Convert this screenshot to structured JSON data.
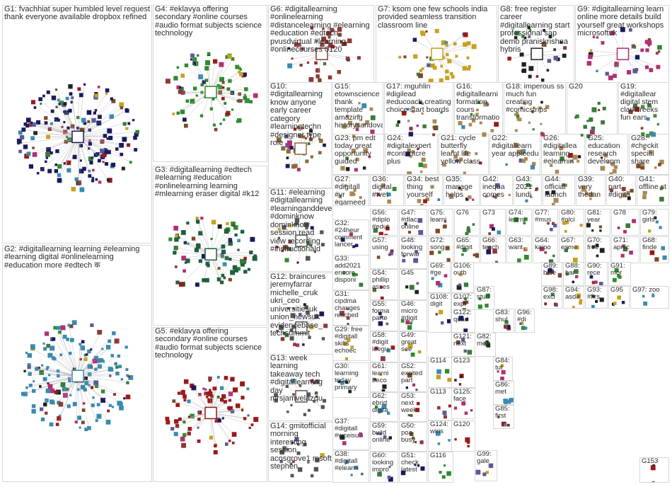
{
  "groups": [
    {
      "id": "G1",
      "label": "G1: fvachhiat super humbled level request thank everyone available dropbox refined",
      "color": "#1a1a5e"
    },
    {
      "id": "G4",
      "label": "G4: #eklavya offering secondary #online courses #audio format subjects science technology",
      "color": "#2e8b2e"
    },
    {
      "id": "G6",
      "label": "G6: #digitallearning #onlinelearning #distancelearning #elearning #education #edtech pvusdvirtual #learning #onlinecourses 0120",
      "color": "#8c3a3a"
    },
    {
      "id": "G7",
      "label": "G7: ksom one few schools india provided seamless transition classroom line",
      "color": "#c8a020"
    },
    {
      "id": "G8",
      "label": "G8: free register career #digitallearning start professional sap demo praniskrishna hybris",
      "color": "#222222"
    },
    {
      "id": "G9",
      "label": "G9: #digitallearning learn online more details build yourself great workshops microsoftuk",
      "color": "#b03070"
    },
    {
      "id": "G10",
      "label": "G10: #digitallearning know anyone early career category #learningtechn #designer type role",
      "color": "#8a6a3a"
    },
    {
      "id": "G15",
      "label": "G15: etownscience thank template amazing historysandova",
      "color": "#aa8855"
    },
    {
      "id": "G17",
      "label": "G17: mguhlin #digilead #educoach creating choice start boards",
      "color": "#aa8855"
    },
    {
      "id": "G16",
      "label": "G16: #digitallearni formation cours transformatio",
      "color": "#aa8855"
    },
    {
      "id": "G18",
      "label": "G18: imperous ss much fun creating #comicstrips",
      "color": "#aa8855"
    },
    {
      "id": "G20",
      "label": "G20",
      "color": "#3a7a3a"
    },
    {
      "id": "G19",
      "label": "G19: #digitallear digital stem clarkcreeks fun ears",
      "color": "#4a8a4a"
    },
    {
      "id": "G3",
      "label": "G3: #digitallearning #edtech #elearning #education #onlinelearning learning #mlearning eraser digital #k12",
      "color": "#1f5f3f"
    },
    {
      "id": "G23",
      "label": "G23: pm edt today great opportunity guided",
      "color": "#aa8855"
    },
    {
      "id": "G24",
      "label": "G24: #digitalexpert #contentcre plus",
      "color": "#aa8855"
    },
    {
      "id": "G21",
      "label": "G21: cycle butterfly learnt life yellow class",
      "color": "#aa8855"
    },
    {
      "id": "G22",
      "label": "G22: #digitallearn year appleedu",
      "color": "#aa8855"
    },
    {
      "id": "G26",
      "label": "G26: #digitallea learning #elearnin",
      "color": "#aa8855"
    },
    {
      "id": "G25",
      "label": "G25: education research developm",
      "color": "#aa8855"
    },
    {
      "id": "G28",
      "label": "G28: #checkit special share",
      "color": "#aa8855"
    },
    {
      "id": "G11",
      "label": "G11: #elearning #digitallearning #learninganddevelopment #dominknow dominknow session read view recording #instructionald",
      "color": "#555555"
    },
    {
      "id": "G27",
      "label": "G27: #digitall #vr #gameed",
      "color": "#aa8855"
    },
    {
      "id": "G36",
      "label": "G36: digital #tvet",
      "color": "#aa8855"
    },
    {
      "id": "G34",
      "label": "G34: best thing yourself",
      "color": "#aa8855"
    },
    {
      "id": "G35",
      "label": "G35: manage helps",
      "color": "#aa8855"
    },
    {
      "id": "G42",
      "label": "G42: inequa comes",
      "color": "#aa8855"
    },
    {
      "id": "G43",
      "label": "G43: 2021 lundi",
      "color": "#aa8855"
    },
    {
      "id": "G44",
      "label": "G44: official launch",
      "color": "#aa8855"
    },
    {
      "id": "G39",
      "label": "G39: very thedan",
      "color": "#aa8855"
    },
    {
      "id": "G40",
      "label": "G40: part #digita",
      "color": "#aa8855"
    },
    {
      "id": "G41",
      "label": "G41: offline st",
      "color": "#aa8855"
    },
    {
      "id": "G2",
      "label": "G2: #digitallearning learning #elearning #learning digital #onlinelearning #education more #edtech क",
      "color": "#3a8ab0"
    },
    {
      "id": "G5",
      "label": "G5: #eklavya offering secondary #online courses #audio format subjects science technology",
      "color": "#9a1a1a"
    },
    {
      "id": "G12",
      "label": "G12: braincures jeremyfarrar michelle_cruk ukri_ceo universitiesuk union_newsuk evidencebase_ techsummit",
      "color": "#555555"
    },
    {
      "id": "G13",
      "label": "G13: week learning takeaway tech #digitallearning day mrsjamvelazqu",
      "color": "#555555"
    },
    {
      "id": "G14",
      "label": "G14: gmitofficial morning interesting session acosgrove1 msoft stephen",
      "color": "#555555"
    }
  ],
  "small_groups": [
    {
      "id": "G32",
      "label": "G32: #24heur comment lancer"
    },
    {
      "id": "G33",
      "label": "G33: add2021 encore disponi"
    },
    {
      "id": "G31",
      "label": "G31: cipdma changes resched"
    },
    {
      "id": "G29",
      "label": "G29: free #digitall skills echoec"
    },
    {
      "id": "G30",
      "label": "G30: learning today primary"
    },
    {
      "id": "G37",
      "label": "G37: #digitall #wceisu"
    },
    {
      "id": "G38",
      "label": "G38: #digitall #elearni"
    },
    {
      "id": "G56",
      "label": "G56: #diplo #edut"
    },
    {
      "id": "G47",
      "label": "G47: #dlac online"
    },
    {
      "id": "G75",
      "label": "G75: learni"
    },
    {
      "id": "G76",
      "label": "G76"
    },
    {
      "id": "G73",
      "label": "G73"
    },
    {
      "id": "G74",
      "label": "G74: learni"
    },
    {
      "id": "G77",
      "label": "G77: #mus"
    },
    {
      "id": "G80",
      "label": "G80: #olci"
    },
    {
      "id": "G81",
      "label": "G81: year"
    },
    {
      "id": "G78",
      "label": "G78"
    },
    {
      "id": "G79",
      "label": "G79: girls"
    },
    {
      "id": "G57",
      "label": "G57: using"
    },
    {
      "id": "G48",
      "label": "G48: looking forwar"
    },
    {
      "id": "G72",
      "label": "G72: song"
    },
    {
      "id": "G65",
      "label": "G65: #digit"
    },
    {
      "id": "G66",
      "label": "G66: teach"
    },
    {
      "id": "G63",
      "label": "G63: want"
    },
    {
      "id": "G64",
      "label": "G64: kaipo"
    },
    {
      "id": "G67",
      "label": "G67: esme"
    },
    {
      "id": "G70",
      "label": "G70: free"
    },
    {
      "id": "G71",
      "label": "G71: apnic"
    },
    {
      "id": "G68",
      "label": "G68: finde"
    },
    {
      "id": "G54",
      "label": "G54: phillip asses"
    },
    {
      "id": "G45",
      "label": "G45"
    },
    {
      "id": "G69",
      "label": "G69: #ge"
    },
    {
      "id": "G106",
      "label": "G106: outb"
    },
    {
      "id": "G55",
      "label": "G55: forma parte"
    },
    {
      "id": "G46",
      "label": "G46: micro #digit"
    },
    {
      "id": "G58",
      "label": "G58: #digit leegu"
    },
    {
      "id": "G49",
      "label": "G49: great see"
    },
    {
      "id": "G61",
      "label": "G61: learni beco"
    },
    {
      "id": "G52",
      "label": "G52: excited part"
    },
    {
      "id": "G62",
      "label": "G62: ebrid digita"
    },
    {
      "id": "G53",
      "label": "G53: next week"
    },
    {
      "id": "G59",
      "label": "G59: build online"
    },
    {
      "id": "G50",
      "label": "G50: poa busy"
    },
    {
      "id": "G60",
      "label": "G60: looking impro"
    },
    {
      "id": "G51",
      "label": "G51: check latest"
    },
    {
      "id": "G116",
      "label": "G116"
    },
    {
      "id": "G113",
      "label": "G113"
    },
    {
      "id": "G114",
      "label": "G114"
    },
    {
      "id": "G123",
      "label": "G123"
    },
    {
      "id": "G125",
      "label": "G125: face"
    },
    {
      "id": "G124",
      "label": "G124: wiris"
    },
    {
      "id": "G120",
      "label": "G120"
    },
    {
      "id": "G121",
      "label": "G121: next"
    },
    {
      "id": "G122",
      "label": "G122: quad"
    },
    {
      "id": "G107",
      "label": "G107: expl"
    },
    {
      "id": "G108",
      "label": "G108: digit"
    },
    {
      "id": "G87",
      "label": "G87: stud"
    },
    {
      "id": "G83",
      "label": "G83: shul"
    },
    {
      "id": "G96",
      "label": "G96: #di"
    },
    {
      "id": "G82",
      "label": "G82: mep"
    },
    {
      "id": "G84",
      "label": "G84: tut"
    },
    {
      "id": "G86",
      "label": "G86: met"
    },
    {
      "id": "G85",
      "label": "G85: first"
    },
    {
      "id": "G99",
      "label": "G99: gale"
    },
    {
      "id": "G89",
      "label": "G89: blue"
    },
    {
      "id": "G88",
      "label": "G88: har"
    },
    {
      "id": "G90",
      "label": "G90: rece"
    },
    {
      "id": "G91",
      "label": "G91: mor"
    },
    {
      "id": "G98",
      "label": "G98: exci"
    },
    {
      "id": "G94",
      "label": "G94: asda"
    },
    {
      "id": "G93",
      "label": "G93: #firs"
    },
    {
      "id": "G95",
      "label": "G95"
    },
    {
      "id": "G97",
      "label": "G97: zoo"
    },
    {
      "id": "G153",
      "label": "G153"
    }
  ]
}
